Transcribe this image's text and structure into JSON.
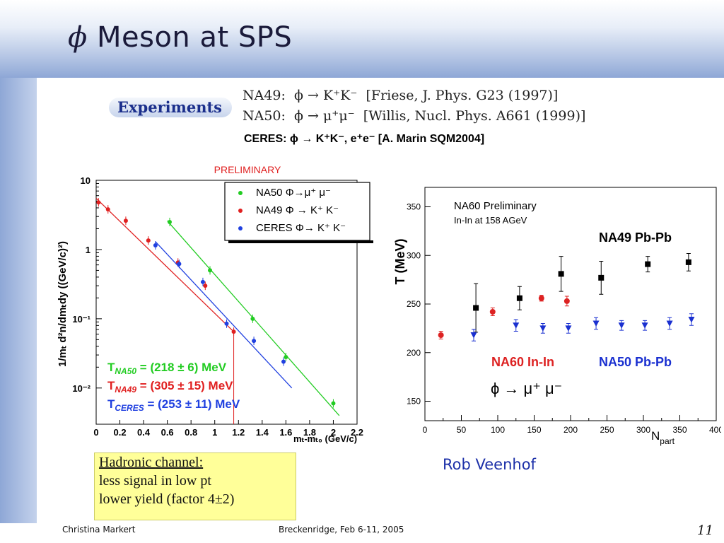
{
  "slide": {
    "title_symbol": "ϕ",
    "title_text": "Meson at SPS",
    "page_number": "11",
    "footer_author": "Christina Markert",
    "footer_event": "Breckenridge, Feb 6-11, 2005",
    "credit": "Rob Veenhof"
  },
  "experiments": {
    "label": "Experiments",
    "na49": "NA49:  ϕ → K⁺K⁻  [Friese, J. Phys. G23 (1997)]",
    "na50": "NA50:  ϕ → μ⁺μ⁻  [Willis, Nucl. Phys. A661 (1999)]",
    "ceres": "CERES: ϕ → K⁺K⁻, e⁺e⁻ [A. Marin SQM2004]"
  },
  "note": {
    "line1": "Hadronic channel:",
    "line2": "less signal in low pt",
    "line3": "lower yield (factor 4±2)"
  },
  "chart_data": [
    {
      "type": "scatter",
      "title": "PRELIMINARY",
      "ylabel": "1/mₜ d²n/dmₜdy ((GeV/c)²)",
      "xlabel": "mₜ-mₜ₀ (GeV/c)",
      "xlim": [
        0,
        2.2
      ],
      "ylim": [
        0.003,
        10
      ],
      "yscale": "log",
      "xticks": [
        "0",
        "0.2",
        "0.4",
        "0.6",
        "0.8",
        "1",
        "1.2",
        "1.4",
        "1.6",
        "1.8",
        "2",
        "2.2"
      ],
      "yticks": [
        "10",
        "1",
        "10⁻¹",
        "10⁻²"
      ],
      "legend_position": "top-right",
      "series": [
        {
          "name": "NA50 Φ→μ⁺ μ⁻",
          "color": "#22cc22",
          "fit": "T = (218 ± 6) MeV",
          "fit_line": [
            [
              0.6,
              2.6
            ],
            [
              2.05,
              0.004
            ]
          ],
          "points": [
            [
              0.62,
              2.5
            ],
            [
              0.96,
              0.5
            ],
            [
              1.32,
              0.1
            ],
            [
              1.6,
              0.028
            ],
            [
              2.0,
              0.006
            ]
          ]
        },
        {
          "name": "NA49 Φ → K⁺ K⁻",
          "color": "#e02020",
          "fit": "T = (305 ± 15) MeV",
          "fit_line": [
            [
              0.0,
              5.5
            ],
            [
              1.16,
              0.065
            ]
          ],
          "points": [
            [
              0.02,
              4.8
            ],
            [
              0.1,
              3.8
            ],
            [
              0.25,
              2.6
            ],
            [
              0.44,
              1.35
            ],
            [
              0.69,
              0.65
            ],
            [
              0.92,
              0.3
            ],
            [
              1.16,
              0.065
            ]
          ]
        },
        {
          "name": "CERES Φ→ K⁺ K⁻",
          "color": "#2040e0",
          "fit": "T = (253 ± 11) MeV",
          "fit_line": [
            [
              0.5,
              1.3
            ],
            [
              1.65,
              0.01
            ]
          ],
          "points": [
            [
              0.5,
              1.15
            ],
            [
              0.7,
              0.62
            ],
            [
              0.9,
              0.34
            ],
            [
              1.1,
              0.085
            ],
            [
              1.33,
              0.048
            ],
            [
              1.58,
              0.024
            ]
          ]
        }
      ]
    },
    {
      "type": "scatter",
      "title": "NA60 Preliminary",
      "subtitle": "In-In at 158 AGeV",
      "ylabel": "T (MeV)",
      "xlabel": "N",
      "xlabel_sub": "part",
      "xlim": [
        0,
        400
      ],
      "ylim": [
        130,
        370
      ],
      "xticks": [
        0,
        50,
        100,
        150,
        200,
        250,
        300,
        350,
        400
      ],
      "yticks": [
        150,
        200,
        250,
        300,
        350
      ],
      "decay_label": "ϕ → μ⁺ μ⁻",
      "series": [
        {
          "name": "NA49 Pb-Pb",
          "color": "#000000",
          "marker": "square",
          "points": [
            [
              70,
              246,
              25
            ],
            [
              130,
              256,
              12
            ],
            [
              187,
              281,
              18
            ],
            [
              242,
              277,
              17
            ],
            [
              306,
              291,
              8
            ],
            [
              362,
              293,
              9
            ]
          ]
        },
        {
          "name": "NA60 In-In",
          "color": "#dd2222",
          "marker": "circle",
          "points": [
            [
              22,
              218,
              4
            ],
            [
              93,
              242,
              4
            ],
            [
              160,
              256,
              3
            ],
            [
              195,
              253,
              5
            ]
          ]
        },
        {
          "name": "NA50 Pb-Pb",
          "color": "#1a30d0",
          "marker": "triangle-down",
          "points": [
            [
              67,
              218,
              6
            ],
            [
              125,
              228,
              6
            ],
            [
              162,
              225,
              5
            ],
            [
              197,
              225,
              5
            ],
            [
              235,
              230,
              6
            ],
            [
              270,
              228,
              5
            ],
            [
              302,
              228,
              5
            ],
            [
              336,
              230,
              6
            ],
            [
              366,
              234,
              6
            ]
          ]
        }
      ]
    }
  ]
}
